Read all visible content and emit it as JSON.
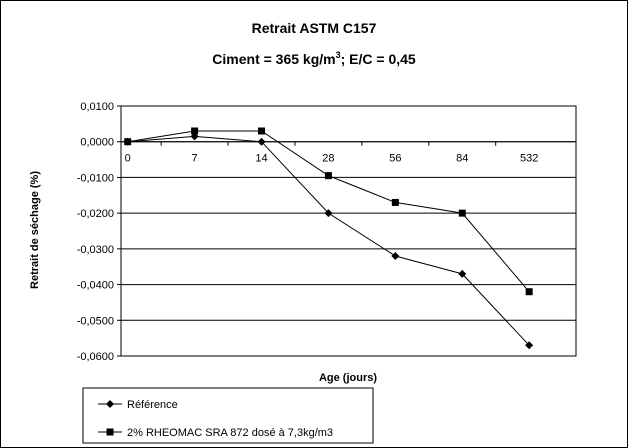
{
  "chart_data": {
    "type": "line",
    "title": "Retrait ASTM C157",
    "subtitle_pre": "Ciment = 365 kg/m",
    "subtitle_sup": "3",
    "subtitle_post": "; E/C = 0,45",
    "xlabel": "Age (jours)",
    "ylabel": "Retrait de séchage (%)",
    "categories": [
      "0",
      "7",
      "14",
      "28",
      "56",
      "84",
      "532"
    ],
    "ylim": [
      -0.06,
      0.01
    ],
    "y_ticks": [
      "0,0100",
      "0,0000",
      "-0,0100",
      "-0,0200",
      "-0,0300",
      "-0,0400",
      "-0,0500",
      "-0,0600"
    ],
    "grid": true,
    "legend_position": "bottom",
    "colors": {
      "line": "#000000",
      "grid": "#000000",
      "plot_bg": "#ffffff"
    },
    "series": [
      {
        "name": "Référence",
        "marker": "diamond",
        "values": [
          0.0,
          0.0015,
          0.0,
          -0.02,
          -0.032,
          -0.037,
          -0.057
        ]
      },
      {
        "name": "2% RHEOMAC SRA 872 dosé à 7,3kg/m3",
        "marker": "square",
        "values": [
          0.0,
          0.003,
          0.003,
          -0.0095,
          -0.017,
          -0.02,
          -0.042
        ]
      }
    ]
  }
}
